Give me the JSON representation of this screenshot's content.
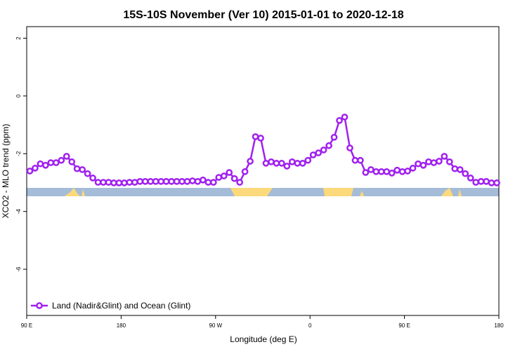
{
  "chart_data": {
    "type": "line",
    "title": "15S-10S November (Ver 10)   2015-01-01 to 2020-12-18",
    "x_label": "Longitude (deg E)",
    "y_label": "XCO2 - MLO trend (ppm)",
    "x": [
      93,
      98,
      103,
      108,
      113,
      118,
      123,
      128,
      133,
      138,
      143,
      148,
      153,
      158,
      163,
      168,
      173,
      178,
      183,
      188,
      193,
      198,
      203,
      208,
      213,
      218,
      223,
      228,
      233,
      238,
      243,
      248,
      253,
      258,
      263,
      268,
      273,
      278,
      283,
      288,
      293,
      298,
      303,
      308,
      313,
      318,
      323,
      328,
      333,
      338,
      343,
      348,
      353,
      358,
      363,
      368,
      373,
      378,
      383,
      388,
      393,
      398,
      403,
      408,
      413,
      418,
      423,
      428,
      433,
      438,
      443,
      448,
      453,
      458,
      463,
      468,
      473,
      478,
      483,
      488,
      493,
      498,
      503,
      508,
      513,
      518,
      523,
      528,
      533,
      538
    ],
    "series": [
      {
        "name": "Land (Nadir&Glint) and Ocean (Glint)",
        "color": "#a020f0",
        "values": [
          -2.6,
          -2.5,
          -2.35,
          -2.4,
          -2.31,
          -2.31,
          -2.23,
          -2.09,
          -2.28,
          -2.52,
          -2.55,
          -2.69,
          -2.84,
          -2.99,
          -2.99,
          -2.99,
          -3.01,
          -3.01,
          -3.01,
          -2.99,
          -2.99,
          -2.96,
          -2.96,
          -2.96,
          -2.96,
          -2.96,
          -2.96,
          -2.96,
          -2.96,
          -2.96,
          -2.96,
          -2.94,
          -2.96,
          -2.91,
          -2.99,
          -2.99,
          -2.82,
          -2.77,
          -2.65,
          -2.86,
          -2.99,
          -2.62,
          -2.26,
          -1.41,
          -1.46,
          -2.33,
          -2.28,
          -2.33,
          -2.33,
          -2.43,
          -2.28,
          -2.33,
          -2.33,
          -2.23,
          -2.04,
          -1.97,
          -1.87,
          -1.72,
          -1.43,
          -0.85,
          -0.73,
          -1.8,
          -2.23,
          -2.23,
          -2.65,
          -2.55,
          -2.62,
          -2.62,
          -2.62,
          -2.67,
          -2.57,
          -2.62,
          -2.6,
          -2.5,
          -2.35,
          -2.4,
          -2.28,
          -2.31,
          -2.26,
          -2.09,
          -2.28,
          -2.52,
          -2.55,
          -2.69,
          -2.84,
          -2.99,
          -2.96,
          -2.96,
          -3.01,
          -3.01
        ]
      }
    ],
    "xlim": [
      90,
      540
    ],
    "xticks": [
      {
        "value": 90,
        "label": "90 E"
      },
      {
        "value": 180,
        "label": "180"
      },
      {
        "value": 270,
        "label": "90 W"
      },
      {
        "value": 360,
        "label": "0"
      },
      {
        "value": 450,
        "label": "90 E"
      },
      {
        "value": 540,
        "label": "180"
      }
    ],
    "ylim": [
      -7.6,
      2.4
    ],
    "yticks": [
      2,
      0,
      -2,
      -4,
      -6
    ],
    "legend": "bottom-left"
  }
}
